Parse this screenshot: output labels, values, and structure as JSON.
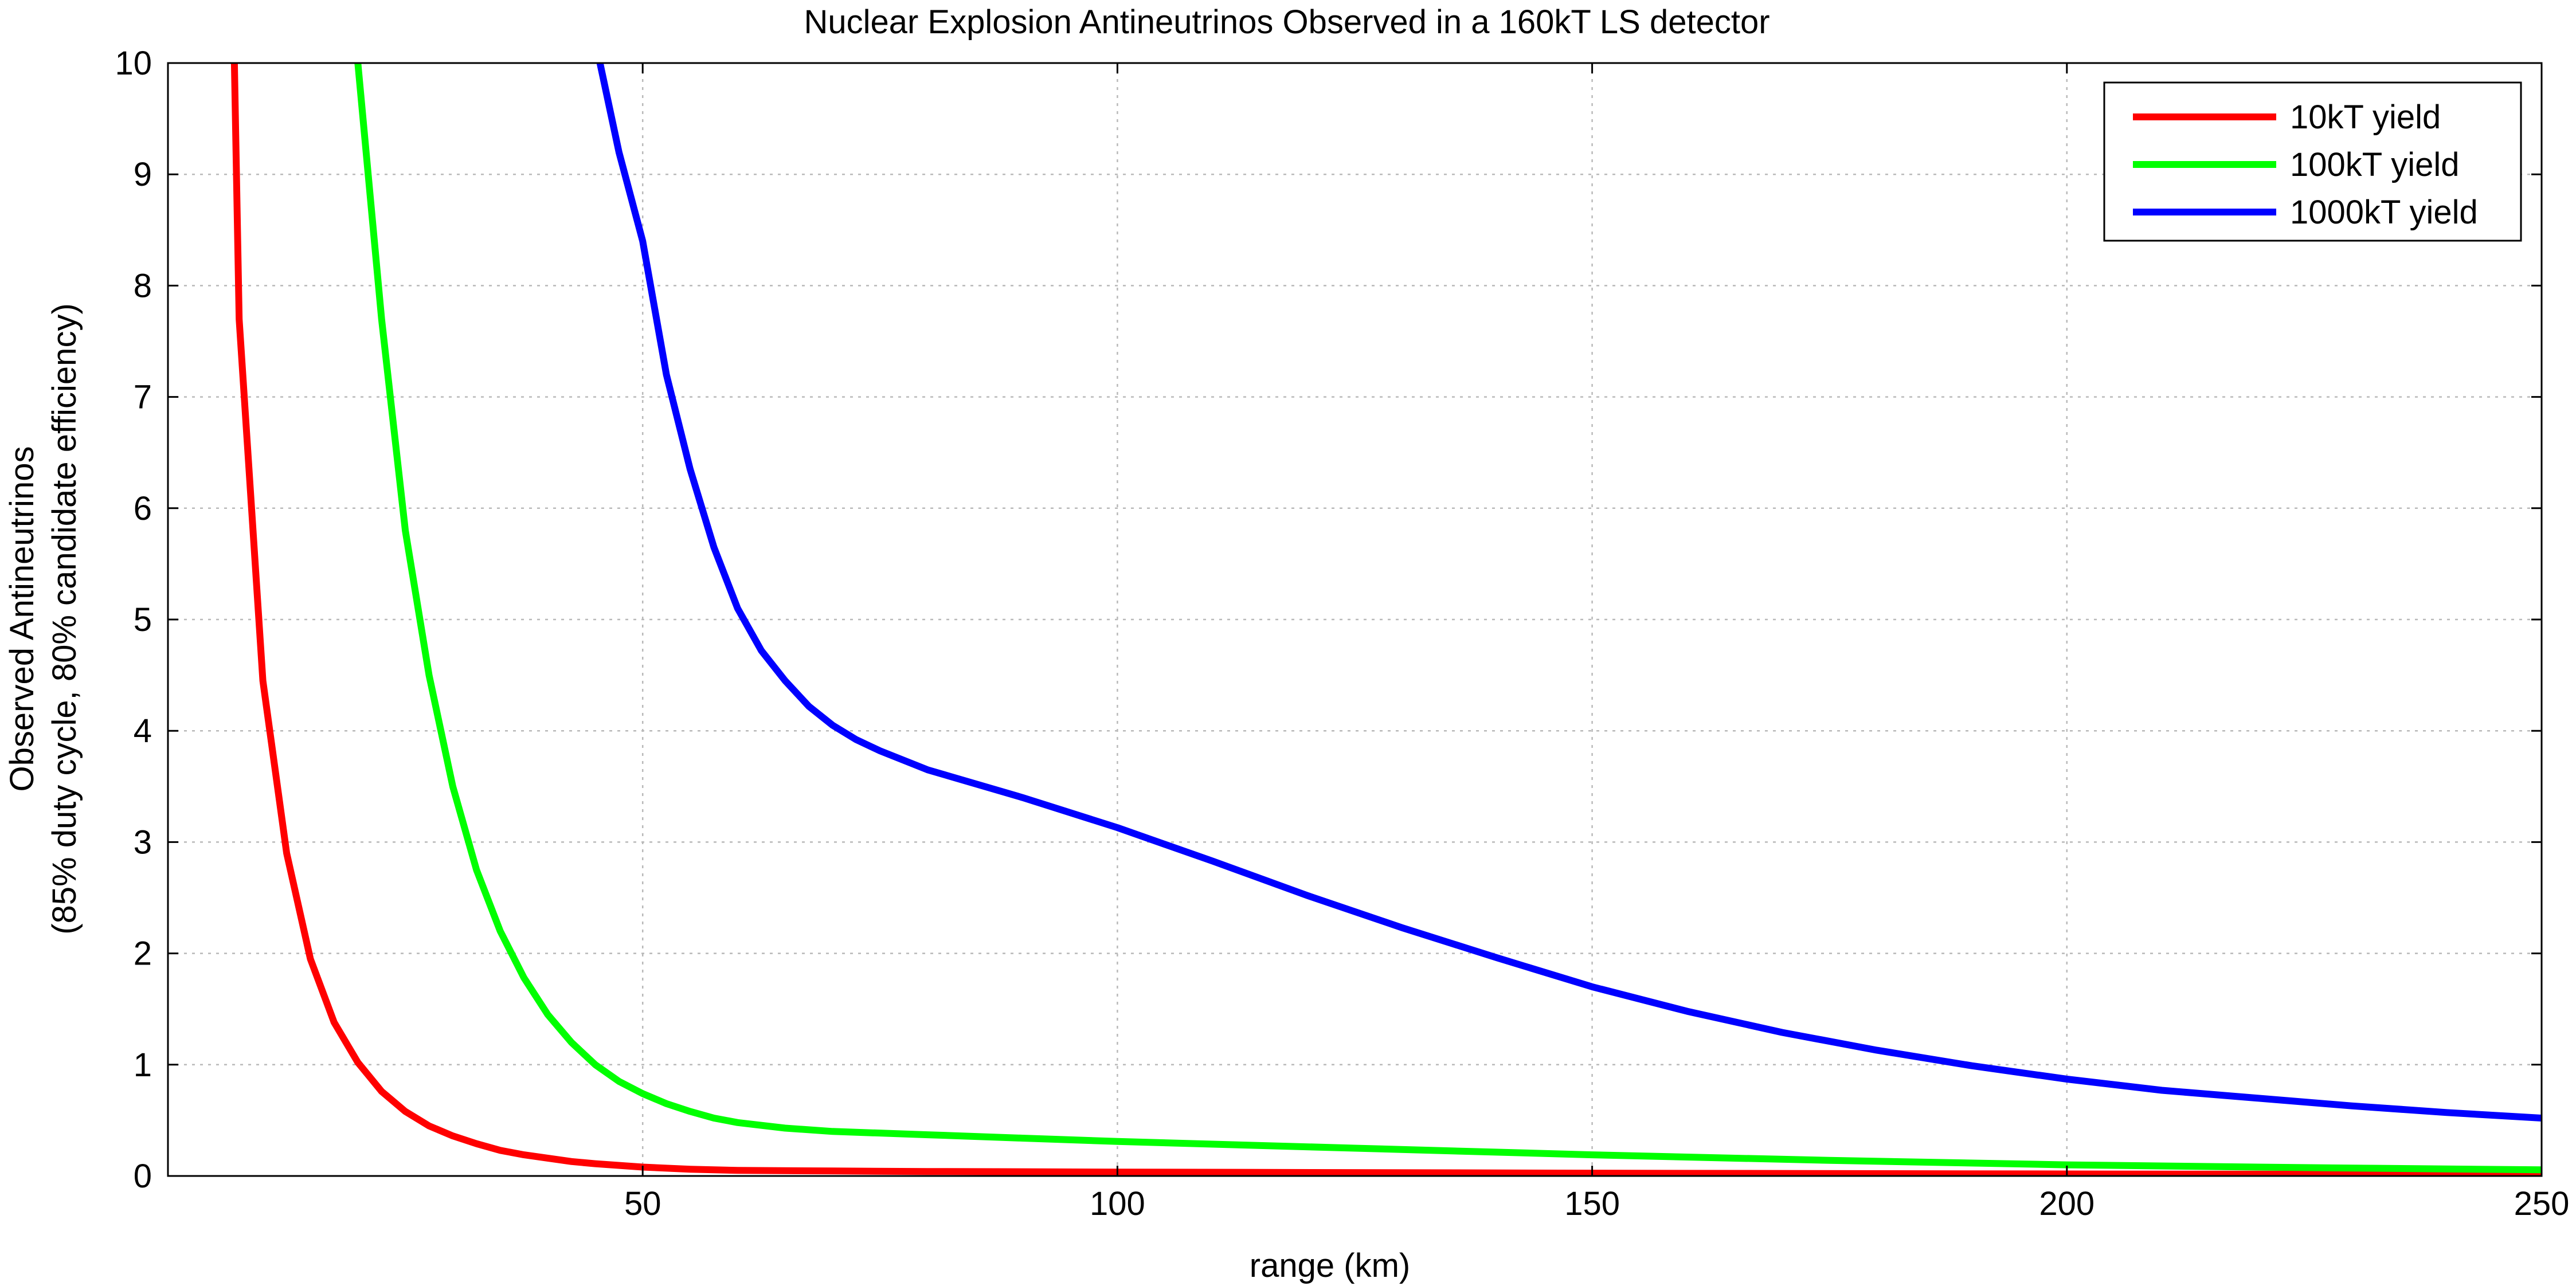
{
  "chart_data": {
    "type": "line",
    "title": "Nuclear Explosion Antineutrinos Observed in a 160kT LS detector",
    "xlabel": "range (km)",
    "ylabel": [
      "Observed Antineutrinos",
      "(85% duty cycle, 80% candidate efficiency)"
    ],
    "xlim": [
      0,
      250
    ],
    "ylim": [
      0,
      10
    ],
    "xticks": [
      50,
      100,
      150,
      200,
      250
    ],
    "yticks": [
      0,
      1,
      2,
      3,
      4,
      5,
      6,
      7,
      8,
      9,
      10
    ],
    "grid": true,
    "legend_position": "top-right",
    "series": [
      {
        "name": "10kT yield",
        "color": "#ff0000",
        "x": [
          7,
          7.5,
          10,
          12.5,
          15,
          17.5,
          20,
          22.5,
          25,
          27.5,
          30,
          32.5,
          35,
          37.5,
          40,
          42.5,
          45,
          50,
          55,
          60,
          70,
          80,
          100,
          150,
          200,
          250
        ],
        "y": [
          10,
          7.7,
          4.45,
          2.9,
          1.95,
          1.38,
          1.02,
          0.76,
          0.58,
          0.45,
          0.36,
          0.29,
          0.23,
          0.19,
          0.16,
          0.13,
          0.11,
          0.08,
          0.06,
          0.05,
          0.045,
          0.04,
          0.035,
          0.025,
          0.018,
          0.014
        ]
      },
      {
        "name": "100kT yield",
        "color": "#00ff00",
        "x": [
          20,
          22.5,
          25,
          27.5,
          30,
          32.5,
          35,
          37.5,
          40,
          42.5,
          45,
          47.5,
          50,
          52.5,
          55,
          57.5,
          60,
          65,
          70,
          80,
          90,
          100,
          125,
          150,
          175,
          200,
          225,
          250
        ],
        "y": [
          10,
          7.7,
          5.8,
          4.5,
          3.5,
          2.75,
          2.2,
          1.78,
          1.45,
          1.2,
          1.0,
          0.85,
          0.74,
          0.65,
          0.58,
          0.52,
          0.48,
          0.43,
          0.4,
          0.37,
          0.34,
          0.31,
          0.25,
          0.19,
          0.14,
          0.1,
          0.075,
          0.055
        ]
      },
      {
        "name": "1000kT yield",
        "color": "#0000ff",
        "x": [
          45.5,
          47.5,
          50,
          52.5,
          55,
          57.5,
          60,
          62.5,
          65,
          67.5,
          70,
          72.5,
          75,
          80,
          90,
          100,
          110,
          120,
          130,
          140,
          150,
          160,
          170,
          180,
          190,
          200,
          210,
          220,
          230,
          240,
          250
        ],
        "y": [
          10,
          9.2,
          8.4,
          7.2,
          6.35,
          5.65,
          5.1,
          4.72,
          4.45,
          4.22,
          4.05,
          3.92,
          3.82,
          3.65,
          3.4,
          3.13,
          2.83,
          2.52,
          2.23,
          1.96,
          1.7,
          1.48,
          1.29,
          1.13,
          0.99,
          0.87,
          0.77,
          0.7,
          0.63,
          0.57,
          0.52
        ]
      }
    ]
  }
}
